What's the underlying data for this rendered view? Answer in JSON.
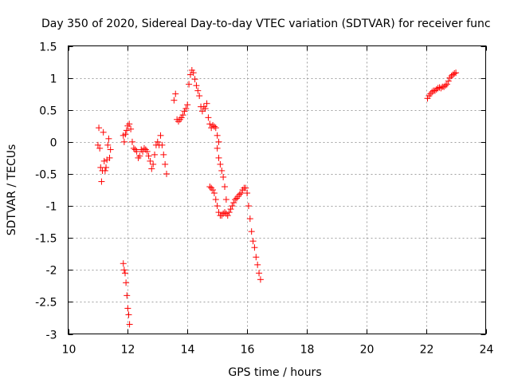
{
  "chart_data": {
    "type": "scatter",
    "title": "Day 350 of 2020, Sidereal Day-to-day VTEC variation (SDTVAR) for receiver func",
    "xlabel": "GPS time / hours",
    "ylabel": "SDTVAR / TECUs",
    "xlim": [
      10,
      24
    ],
    "ylim": [
      -3,
      1.5
    ],
    "xticks": [
      10,
      12,
      14,
      16,
      18,
      20,
      22,
      24
    ],
    "yticks": [
      -3,
      -2.5,
      -2,
      -1.5,
      -1,
      -0.5,
      0,
      0.5,
      1,
      1.5
    ],
    "grid": true,
    "marker": "+",
    "series": [
      {
        "name": "SDTVAR",
        "color": "#ff0000",
        "segments": [
          {
            "x": [
              11.0,
              11.03,
              11.06,
              11.09,
              11.12,
              11.15,
              11.18,
              11.21,
              11.24,
              11.27,
              11.3,
              11.33,
              11.36,
              11.39,
              11.42
            ],
            "y": [
              -0.05,
              0.22,
              -0.1,
              -0.4,
              -0.62,
              -0.45,
              0.15,
              -0.3,
              -0.45,
              -0.4,
              -0.28,
              -0.05,
              0.05,
              -0.25,
              -0.12
            ]
          },
          {
            "x": [
              11.85,
              11.88,
              11.91,
              11.94,
              11.97,
              12.0,
              12.03,
              12.06
            ],
            "y": [
              -1.9,
              -2.0,
              -2.05,
              -2.2,
              -2.4,
              -2.6,
              -2.7,
              -2.85
            ]
          },
          {
            "x": [
              11.85,
              11.88,
              11.92,
              11.96,
              12.0,
              12.05,
              12.1,
              12.15,
              12.2,
              12.25,
              12.3,
              12.35,
              12.4,
              12.45,
              12.5,
              12.55,
              12.6,
              12.65,
              12.7,
              12.75,
              12.8,
              12.85,
              12.9,
              12.95,
              13.0,
              13.05,
              13.1,
              13.15,
              13.2,
              13.25,
              13.3
            ],
            "y": [
              0.1,
              0.0,
              0.12,
              0.18,
              0.25,
              0.28,
              0.2,
              0.0,
              -0.1,
              -0.12,
              -0.15,
              -0.25,
              -0.22,
              -0.12,
              -0.15,
              -0.1,
              -0.12,
              -0.15,
              -0.22,
              -0.3,
              -0.42,
              -0.35,
              -0.2,
              -0.05,
              0.0,
              -0.05,
              0.1,
              -0.05,
              -0.2,
              -0.35,
              -0.5
            ]
          },
          {
            "x": [
              13.55,
              13.6,
              13.65,
              13.7,
              13.75,
              13.8,
              13.85,
              13.9,
              13.95,
              14.0,
              14.05,
              14.1,
              14.15,
              14.2,
              14.25,
              14.3,
              14.35,
              14.4,
              14.45,
              14.5,
              14.55,
              14.6,
              14.65,
              14.7,
              14.75,
              14.8,
              14.85,
              14.9,
              14.95,
              15.0,
              15.05
            ],
            "y": [
              0.65,
              0.75,
              0.35,
              0.32,
              0.35,
              0.38,
              0.42,
              0.48,
              0.52,
              0.58,
              0.9,
              1.05,
              1.12,
              1.08,
              0.98,
              0.88,
              0.8,
              0.72,
              0.55,
              0.48,
              0.55,
              0.52,
              0.6,
              0.38,
              0.28,
              0.22,
              0.26,
              0.24,
              0.22,
              0.1,
              0.0
            ]
          },
          {
            "x": [
              14.75,
              14.8,
              14.85,
              14.9,
              14.95,
              15.0,
              15.05,
              15.1,
              15.15,
              15.2,
              15.25,
              15.3,
              15.35,
              15.4,
              15.45,
              15.5,
              15.55,
              15.6,
              15.65,
              15.7,
              15.75,
              15.8,
              15.85,
              15.9,
              15.95,
              16.0,
              16.05,
              16.1,
              16.15,
              16.2,
              16.25,
              16.3,
              16.35,
              16.4,
              16.45
            ],
            "y": [
              -0.7,
              -0.72,
              -0.75,
              -0.8,
              -0.9,
              -1.0,
              -1.1,
              -1.15,
              -1.15,
              -1.12,
              -1.1,
              -1.12,
              -1.15,
              -1.1,
              -1.05,
              -1.0,
              -0.95,
              -0.9,
              -0.88,
              -0.85,
              -0.82,
              -0.8,
              -0.75,
              -0.72,
              -0.72,
              -0.8,
              -1.0,
              -1.2,
              -1.4,
              -1.55,
              -1.65,
              -1.8,
              -1.92,
              -2.05,
              -2.15
            ]
          },
          {
            "x": [
              15.0,
              15.05,
              15.1,
              15.15,
              15.2,
              15.25,
              15.3
            ],
            "y": [
              -0.1,
              -0.25,
              -0.35,
              -0.45,
              -0.55,
              -0.7,
              -0.9
            ]
          },
          {
            "x": [
              22.05,
              22.1,
              22.15,
              22.2,
              22.25,
              22.3,
              22.35,
              22.4,
              22.45,
              22.5,
              22.55,
              22.6,
              22.65,
              22.7,
              22.75,
              22.8,
              22.85,
              22.9,
              22.95,
              23.0
            ],
            "y": [
              0.68,
              0.72,
              0.75,
              0.78,
              0.8,
              0.8,
              0.82,
              0.84,
              0.85,
              0.84,
              0.86,
              0.86,
              0.88,
              0.9,
              0.95,
              1.0,
              1.03,
              1.05,
              1.07,
              1.08
            ]
          }
        ]
      }
    ]
  }
}
